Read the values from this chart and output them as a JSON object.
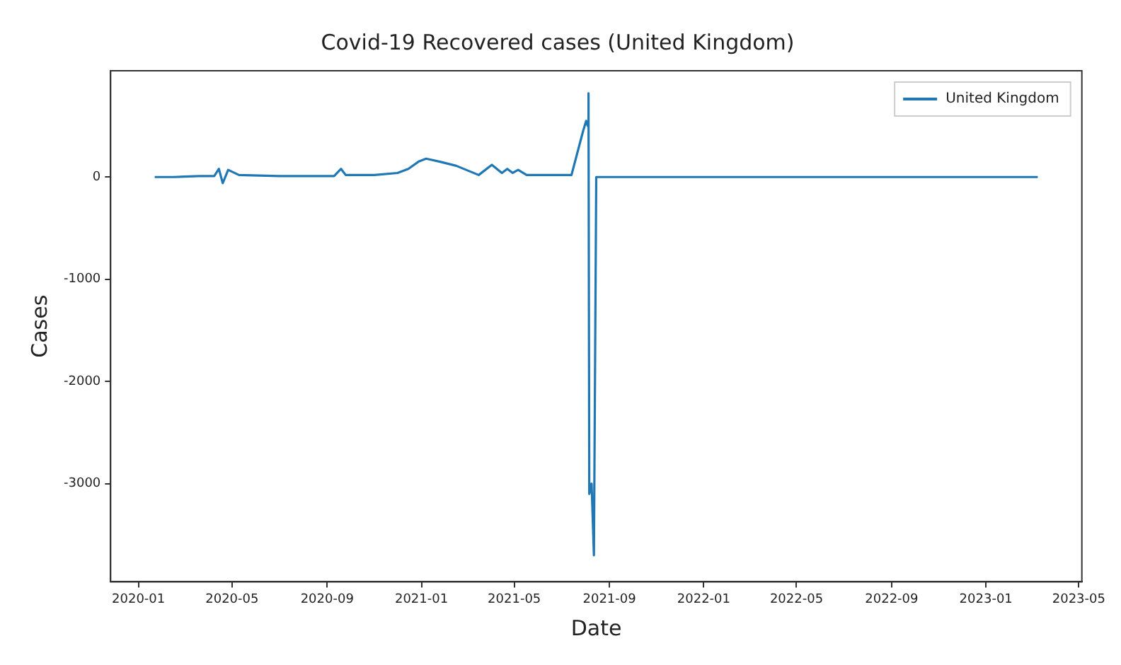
{
  "chart_data": {
    "type": "line",
    "title": "Covid-19 Recovered cases (United Kingdom)",
    "xlabel": "Date",
    "ylabel": "Cases",
    "x": [
      "2020-01-22",
      "2020-02-15",
      "2020-03-20",
      "2020-04-08",
      "2020-04-14",
      "2020-04-19",
      "2020-04-26",
      "2020-05-10",
      "2020-07-01",
      "2020-09-10",
      "2020-09-19",
      "2020-09-25",
      "2020-11-01",
      "2020-12-01",
      "2020-12-15",
      "2020-12-28",
      "2021-01-07",
      "2021-01-25",
      "2021-02-15",
      "2021-03-16",
      "2021-04-02",
      "2021-04-15",
      "2021-04-22",
      "2021-04-29",
      "2021-05-06",
      "2021-05-17",
      "2021-06-10",
      "2021-07-14",
      "2021-07-29",
      "2021-08-02",
      "2021-08-04",
      "2021-08-05",
      "2021-08-06",
      "2021-08-09",
      "2021-08-12",
      "2021-08-15",
      "2021-10-01",
      "2022-06-01",
      "2023-03-09"
    ],
    "series": [
      {
        "name": "United Kingdom",
        "color": "#1f77b4",
        "values": [
          0,
          0,
          10,
          10,
          80,
          -60,
          70,
          20,
          10,
          10,
          80,
          20,
          20,
          40,
          80,
          150,
          180,
          150,
          110,
          20,
          120,
          40,
          80,
          40,
          70,
          20,
          20,
          20,
          450,
          550,
          500,
          820,
          -3100,
          -3000,
          -3700,
          0,
          0,
          0,
          0
        ]
      }
    ],
    "xlim": [
      "2019-11-26",
      "2023-05-05"
    ],
    "xticks": [
      "2020-01",
      "2020-05",
      "2020-09",
      "2021-01",
      "2021-05",
      "2021-09",
      "2022-01",
      "2022-05",
      "2022-09",
      "2023-01",
      "2023-05"
    ],
    "ylim": [
      -3960,
      1040
    ],
    "yticks": [
      -3000,
      -2000,
      -1000,
      0
    ],
    "legend": "top right",
    "grid": false,
    "marker": "none",
    "line_style": "solid"
  }
}
